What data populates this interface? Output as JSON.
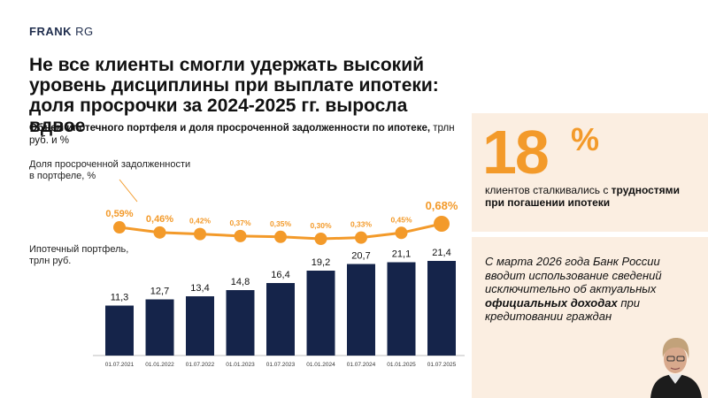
{
  "logo": {
    "brand": "FRANK",
    "suffix": "RG"
  },
  "title": "Не все клиенты смогли удержать высокий уровень дисциплины при выплате ипотеки: доля просрочки за 2024-2025 гг. выросла вдвое",
  "subtitle": {
    "bold": "Объем ипотечного портфеля и доля просроченной задолженности по ипотеке,",
    "normal": " трлн руб. и %"
  },
  "labels": {
    "rate_line1": "Доля просроченной задолженности",
    "rate_line2": "в портфеле, %",
    "portfolio_line1": "Ипотечный портфель,",
    "portfolio_line2": "трлн руб."
  },
  "stat": {
    "number": "18",
    "percent_sign": "%",
    "text_normal": "клиентов сталкивались с ",
    "text_bold": "трудностями при погашении ипотеки"
  },
  "quote": {
    "part1": "С марта 2026 года Банк России вводит использование сведений исключительно об актуальных ",
    "bold": "официальных доходах",
    "part2": " при кредитовании граждан"
  },
  "colors": {
    "accent": "#f39a2a",
    "bar": "#15244a",
    "panel": "#fbeee1"
  },
  "chart_data": [
    {
      "type": "bar",
      "title": "Ипотечный портфель, трлн руб.",
      "categories": [
        "01.07.2021",
        "01.01.2022",
        "01.07.2022",
        "01.01.2023",
        "01.07.2023",
        "01.01.2024",
        "01.07.2024",
        "01.01.2025",
        "01.07.2025"
      ],
      "values": [
        11.3,
        12.7,
        13.4,
        14.8,
        16.4,
        19.2,
        20.7,
        21.1,
        21.4
      ],
      "value_labels": [
        "11,3",
        "12,7",
        "13,4",
        "14,8",
        "16,4",
        "19,2",
        "20,7",
        "21,1",
        "21,4"
      ],
      "ylim": [
        0,
        22
      ]
    },
    {
      "type": "line",
      "title": "Доля просроченной задолженности в портфеле, %",
      "categories": [
        "01.07.2021",
        "01.01.2022",
        "01.07.2022",
        "01.01.2023",
        "01.07.2023",
        "01.01.2024",
        "01.07.2024",
        "01.01.2025",
        "01.07.2025"
      ],
      "values": [
        0.59,
        0.46,
        0.42,
        0.37,
        0.35,
        0.3,
        0.33,
        0.45,
        0.68
      ],
      "value_labels": [
        "0,59%",
        "0,46%",
        "0,42%",
        "0,37%",
        "0,35%",
        "0,30%",
        "0,33%",
        "0,45%",
        "0,68%"
      ],
      "ylim": [
        0.3,
        0.68
      ]
    }
  ]
}
